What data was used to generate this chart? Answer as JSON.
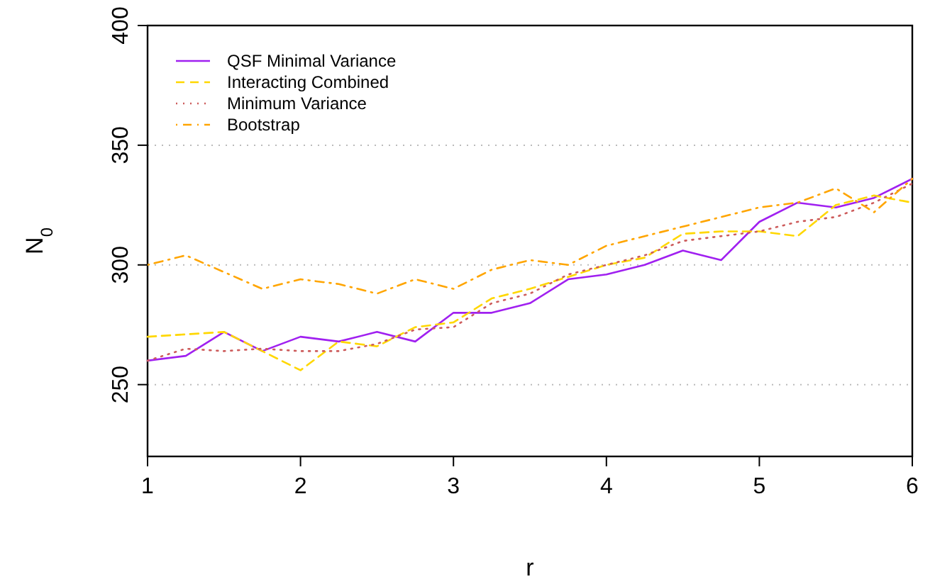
{
  "chart_data": {
    "type": "line",
    "xlabel": "r",
    "ylabel": "N$_{0}$",
    "x": [
      1,
      1.25,
      1.5,
      1.75,
      2,
      2.25,
      2.5,
      2.75,
      3,
      3.25,
      3.5,
      3.75,
      4,
      4.25,
      4.5,
      4.75,
      5,
      5.25,
      5.5,
      5.75,
      6
    ],
    "xlim": [
      1,
      6
    ],
    "xticks": [
      1,
      2,
      3,
      4,
      5,
      6
    ],
    "ylim": [
      220,
      400
    ],
    "yticks": [
      250,
      300,
      350,
      400
    ],
    "grid": "y",
    "legend": "top left",
    "series": [
      {
        "name": "QSF Minimal Variance",
        "color": "#a020f0",
        "line_style": "solid",
        "values": [
          260,
          262,
          272,
          264,
          270,
          268,
          272,
          268,
          280,
          280,
          284,
          294,
          296,
          300,
          306,
          302,
          318,
          326,
          324,
          328,
          336
        ]
      },
      {
        "name": "Interacting Combined",
        "color": "#ffd700",
        "line_style": "dashed",
        "values": [
          270,
          271,
          272,
          264,
          256,
          268,
          266,
          274,
          276,
          286,
          290,
          295,
          300,
          303,
          313,
          314,
          314,
          312,
          325,
          329,
          326
        ]
      },
      {
        "name": "Minimum Variance",
        "color": "#cd5c5c",
        "line_style": "dotted",
        "values": [
          260,
          265,
          264,
          265,
          264,
          264,
          267,
          273,
          274,
          284,
          288,
          296,
          300,
          304,
          310,
          312,
          314,
          318,
          320,
          326,
          334
        ]
      },
      {
        "name": "Bootstrap",
        "color": "#ffa500",
        "line_style": "dashdot",
        "values": [
          300,
          304,
          297,
          290,
          294,
          292,
          288,
          294,
          290,
          298,
          302,
          300,
          308,
          312,
          316,
          320,
          324,
          326,
          332,
          322,
          336
        ]
      }
    ]
  }
}
